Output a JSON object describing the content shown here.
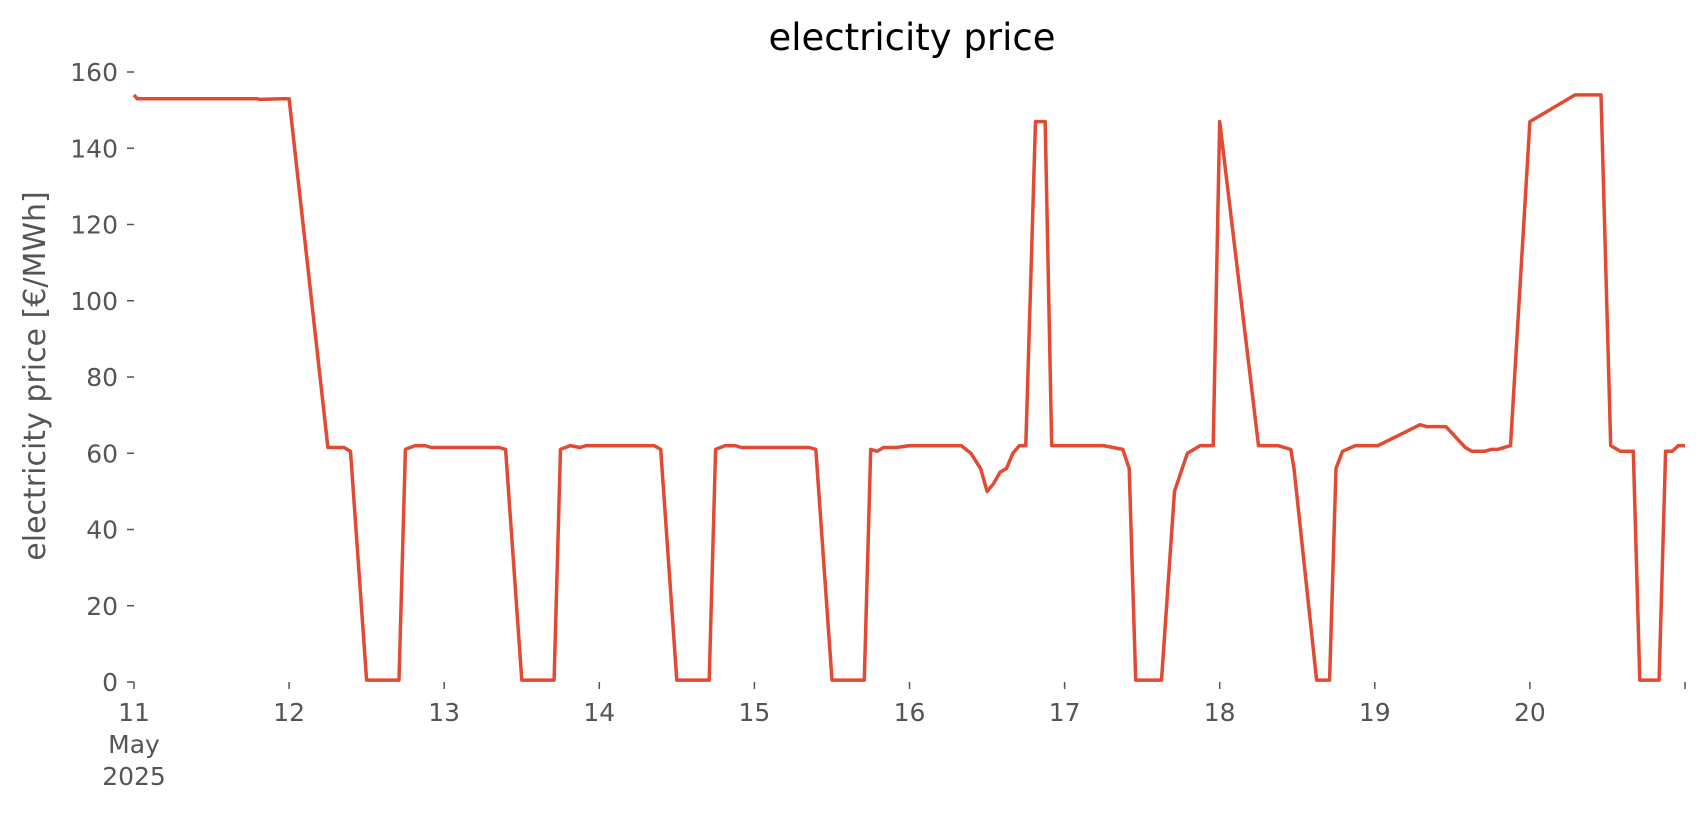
{
  "chart_data": {
    "type": "line",
    "title": "electricity price",
    "xlabel": "",
    "ylabel": "electricity price [€/MWh]",
    "ylim": [
      0,
      160
    ],
    "xlim": [
      "2025-05-11",
      "2025-05-21"
    ],
    "grid": false,
    "legend": "none",
    "color": "#E24A33",
    "y_ticks": [
      0,
      20,
      40,
      60,
      80,
      100,
      120,
      140,
      160
    ],
    "x_ticks": [
      {
        "date": "2025-05-11",
        "lines": [
          "11",
          "May",
          "2025"
        ]
      },
      {
        "date": "2025-05-12",
        "lines": [
          "12"
        ]
      },
      {
        "date": "2025-05-13",
        "lines": [
          "13"
        ]
      },
      {
        "date": "2025-05-14",
        "lines": [
          "14"
        ]
      },
      {
        "date": "2025-05-15",
        "lines": [
          "15"
        ]
      },
      {
        "date": "2025-05-16",
        "lines": [
          "16"
        ]
      },
      {
        "date": "2025-05-17",
        "lines": [
          "17"
        ]
      },
      {
        "date": "2025-05-18",
        "lines": [
          "18"
        ]
      },
      {
        "date": "2025-05-19",
        "lines": [
          "19"
        ]
      },
      {
        "date": "2025-05-20",
        "lines": [
          "20"
        ]
      },
      {
        "date": "2025-05-21",
        "lines": [
          ""
        ]
      }
    ],
    "series": [
      {
        "x": [
          "2025-05-11 00:00",
          "2025-05-11 00:30",
          "2025-05-11 06:00",
          "2025-05-11 19:00",
          "2025-05-11 19:30",
          "2025-05-11 23:00",
          "2025-05-12 00:00",
          "2025-05-12 06:00",
          "2025-05-12 07:30",
          "2025-05-12 08:30",
          "2025-05-12 09:30",
          "2025-05-12 12:00",
          "2025-05-12 16:00",
          "2025-05-12 17:00",
          "2025-05-12 18:00",
          "2025-05-12 19:30",
          "2025-05-12 21:00",
          "2025-05-12 22:00",
          "2025-05-13 00:00",
          "2025-05-13 06:00",
          "2025-05-13 07:30",
          "2025-05-13 08:30",
          "2025-05-13 09:30",
          "2025-05-13 12:00",
          "2025-05-13 16:00",
          "2025-05-13 17:00",
          "2025-05-13 18:00",
          "2025-05-13 19:30",
          "2025-05-13 21:00",
          "2025-05-13 22:00",
          "2025-05-14 00:00",
          "2025-05-14 06:00",
          "2025-05-14 07:30",
          "2025-05-14 08:30",
          "2025-05-14 09:30",
          "2025-05-14 12:00",
          "2025-05-14 16:00",
          "2025-05-14 17:00",
          "2025-05-14 18:00",
          "2025-05-14 19:30",
          "2025-05-14 21:00",
          "2025-05-14 22:00",
          "2025-05-15 00:00",
          "2025-05-15 06:00",
          "2025-05-15 07:30",
          "2025-05-15 08:30",
          "2025-05-15 09:30",
          "2025-05-15 12:00",
          "2025-05-15 16:00",
          "2025-05-15 17:00",
          "2025-05-15 18:00",
          "2025-05-15 19:00",
          "2025-05-15 20:00",
          "2025-05-15 22:00",
          "2025-05-16 00:00",
          "2025-05-16 06:00",
          "2025-05-16 08:00",
          "2025-05-16 09:30",
          "2025-05-16 11:00",
          "2025-05-16 12:00",
          "2025-05-16 13:00",
          "2025-05-16 14:00",
          "2025-05-16 15:00",
          "2025-05-16 16:00",
          "2025-05-16 17:00",
          "2025-05-16 18:00",
          "2025-05-16 19:30",
          "2025-05-16 21:00",
          "2025-05-16 22:00",
          "2025-05-16 23:00",
          "2025-05-17 00:00",
          "2025-05-17 06:00",
          "2025-05-17 09:00",
          "2025-05-17 10:00",
          "2025-05-17 11:00",
          "2025-05-17 12:00",
          "2025-05-17 14:00",
          "2025-05-17 15:00",
          "2025-05-17 17:00",
          "2025-05-17 18:00",
          "2025-05-17 19:00",
          "2025-05-17 21:00",
          "2025-05-17 23:00",
          "2025-05-18 00:00",
          "2025-05-18 06:00",
          "2025-05-18 07:00",
          "2025-05-18 08:00",
          "2025-05-18 09:00",
          "2025-05-18 11:00",
          "2025-05-18 11:30",
          "2025-05-18 15:00",
          "2025-05-18 16:00",
          "2025-05-18 17:00",
          "2025-05-18 18:00",
          "2025-05-18 19:00",
          "2025-05-18 21:00",
          "2025-05-18 22:00",
          "2025-05-19 00:00",
          "2025-05-19 00:30",
          "2025-05-19 07:00",
          "2025-05-19 08:00",
          "2025-05-19 09:00",
          "2025-05-19 11:00",
          "2025-05-19 14:00",
          "2025-05-19 15:00",
          "2025-05-19 16:00",
          "2025-05-19 17:00",
          "2025-05-19 18:00",
          "2025-05-19 19:00",
          "2025-05-19 21:00",
          "2025-05-20 00:00",
          "2025-05-20 07:00",
          "2025-05-20 09:00",
          "2025-05-20 10:00",
          "2025-05-20 11:00",
          "2025-05-20 12:30",
          "2025-05-20 14:00",
          "2025-05-20 16:00",
          "2025-05-20 17:00",
          "2025-05-20 18:00",
          "2025-05-20 19:00",
          "2025-05-20 20:00",
          "2025-05-20 21:00",
          "2025-05-20 22:00",
          "2025-05-20 23:00",
          "2025-05-21 00:00"
        ],
        "y": [
          154,
          153,
          153,
          153,
          152.8,
          153,
          153,
          61.5,
          61.5,
          61.5,
          60.5,
          0.5,
          0.5,
          0.5,
          61,
          62,
          62,
          61.5,
          61.5,
          61.5,
          61.5,
          61.5,
          61,
          0.5,
          0.5,
          0.5,
          61,
          62,
          61.5,
          62,
          62,
          62,
          62,
          62,
          61,
          0.5,
          0.5,
          0.5,
          61,
          62,
          62,
          61.5,
          61.5,
          61.5,
          61.5,
          61.5,
          61,
          0.5,
          0.5,
          0.5,
          61,
          60.5,
          61.5,
          61.5,
          62,
          62,
          62,
          60,
          56,
          50,
          52,
          55,
          56,
          60,
          62,
          62,
          147,
          147,
          62,
          62,
          62,
          62,
          61,
          56,
          0.5,
          0.5,
          0.5,
          0.5,
          50,
          55,
          60,
          62,
          62,
          147,
          62,
          62,
          62,
          62,
          61,
          56,
          0.5,
          0.5,
          0.5,
          56,
          60.5,
          62,
          62,
          62,
          62,
          67.5,
          67,
          67,
          67,
          61.5,
          60.5,
          60.5,
          60.5,
          61,
          61,
          62,
          147,
          154,
          154,
          154,
          154,
          62,
          60.5,
          60.5,
          0.5,
          0.5,
          0.5,
          0.5,
          60.5,
          60.5,
          62,
          62
        ]
      }
    ]
  }
}
